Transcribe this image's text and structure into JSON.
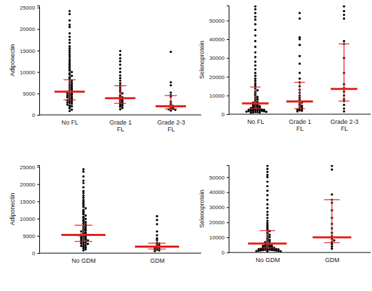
{
  "chart_data": [
    {
      "type": "strip",
      "y_label": "Adiponectin",
      "categories": [
        "No FL",
        "Grade 1\nFL",
        "Grade 2-3\nFL"
      ],
      "ylim": [
        0,
        25500
      ],
      "yticks": [
        0,
        5000,
        10000,
        15000,
        20000,
        25000
      ],
      "series": [
        {
          "type": "scatter",
          "color": "#000000",
          "marker": "circle",
          "values": [
            [
              24200,
              23500,
              22000,
              21000,
              20500,
              19000,
              18200,
              17500,
              16800,
              16000,
              15500,
              15000,
              14500,
              14000,
              13500,
              13000,
              12600,
              12200,
              11800,
              11400,
              11000,
              10600,
              10300,
              10000,
              9700,
              9400,
              9100,
              8800,
              8500,
              8200,
              8000,
              7700,
              7500,
              7200,
              7000,
              6800,
              6600,
              6400,
              6200,
              6000,
              5800,
              5600,
              5500,
              5400,
              5300,
              5100,
              5000,
              4800,
              4700,
              4500,
              4400,
              4200,
              4100,
              3900,
              3800,
              3600,
              3500,
              3400,
              3200,
              3100,
              2900,
              2800,
              2600,
              2400,
              2200,
              2000,
              1800,
              1500,
              1200,
              900
            ],
            [
              14900,
              14000,
              13200,
              12500,
              11700,
              10800,
              10000,
              9200,
              8600,
              8000,
              7400,
              6900,
              6500,
              6100,
              5700,
              5300,
              5000,
              4600,
              4300,
              4100,
              3900,
              3700,
              3500,
              3300,
              3100,
              2900,
              2700,
              2500,
              2300,
              2100,
              1900,
              1600,
              1300
            ],
            [
              14700,
              7600,
              6900,
              5200,
              4600,
              4200,
              3100,
              2600,
              2300,
              2100,
              2000,
              1900,
              1700,
              1500,
              1400,
              1300,
              1200,
              1000
            ]
          ]
        },
        {
          "type": "errorbar",
          "color": "#e3201b",
          "values": [
            5400,
            3900,
            2000
          ],
          "lower": [
            3500,
            2700,
            1400
          ],
          "upper": [
            8200,
            6800,
            4500
          ]
        }
      ]
    },
    {
      "type": "strip",
      "y_label": "Selenoprotein",
      "categories": [
        "No FL",
        "Grade 1\nFL",
        "Grade 2-3\nFL"
      ],
      "ylim": [
        0,
        58000
      ],
      "yticks": [
        0,
        10000,
        20000,
        30000,
        40000,
        50000
      ],
      "series": [
        {
          "type": "scatter",
          "color": "#000000",
          "marker": "circle",
          "values": [
            [
              57500,
              56000,
              54000,
              52000,
              50500,
              48000,
              45000,
              42000,
              39000,
              36000,
              33000,
              30500,
              28000,
              26000,
              24000,
              22000,
              20500,
              19000,
              17800,
              16500,
              15500,
              14500,
              13600,
              12800,
              12000,
              11200,
              10500,
              9800,
              9200,
              8600,
              8000,
              7500,
              7000,
              6600,
              6200,
              5900,
              5600,
              5300,
              5000,
              4700,
              4500,
              4300,
              4100,
              3900,
              3700,
              3500,
              3300,
              3100,
              3000,
              2800,
              2700,
              2600,
              2500,
              2400,
              2300,
              2200,
              2100,
              2000,
              1900,
              1800,
              1700,
              1600,
              1500,
              1400,
              1300,
              1200,
              1100,
              1000,
              900,
              800
            ],
            [
              54000,
              51000,
              41000,
              40000,
              37000,
              31000,
              27000,
              22000,
              19000,
              17000,
              15000,
              13000,
              11500,
              10000,
              9000,
              8000,
              7200,
              6800,
              6200,
              5600,
              5000,
              4500,
              4000,
              3500,
              3000,
              2700,
              2400,
              2100,
              1800,
              1500
            ],
            [
              57500,
              55000,
              53000,
              51000,
              39000,
              37500,
              30000,
              22000,
              16000,
              14000,
              13500,
              12000,
              10000,
              8000,
              7000,
              5000,
              3000,
              1500
            ]
          ]
        },
        {
          "type": "errorbar",
          "color": "#e3201b",
          "values": [
            5800,
            6800,
            13500
          ],
          "lower": [
            3000,
            3000,
            7000
          ],
          "upper": [
            14500,
            17000,
            37500
          ]
        }
      ]
    },
    {
      "type": "strip",
      "y_label": "Adiponectin",
      "categories": [
        "No GDM",
        "GDM"
      ],
      "ylim": [
        0,
        25500
      ],
      "yticks": [
        0,
        5000,
        10000,
        15000,
        20000,
        25000
      ],
      "series": [
        {
          "type": "scatter",
          "color": "#000000",
          "marker": "circle",
          "values": [
            [
              24300,
              23600,
              22200,
              21000,
              20300,
              19100,
              18000,
              17400,
              16700,
              16100,
              15400,
              14900,
              14400,
              13900,
              13400,
              13000,
              12500,
              12100,
              11700,
              11300,
              10900,
              10500,
              10200,
              9900,
              9600,
              9300,
              9000,
              8700,
              8400,
              8100,
              7900,
              7600,
              7400,
              7100,
              6900,
              6700,
              6500,
              6300,
              6100,
              5900,
              5700,
              5500,
              5400,
              5300,
              5200,
              5000,
              4900,
              4700,
              4600,
              4400,
              4300,
              4100,
              4000,
              3800,
              3700,
              3500,
              3400,
              3300,
              3100,
              3000,
              2800,
              2700,
              2500,
              2300,
              2100,
              1900,
              1700,
              1400,
              1100,
              800
            ],
            [
              10700,
              9600,
              8400,
              6300,
              5200,
              4300,
              3800,
              3000,
              2800,
              2500,
              2200,
              2000,
              1900,
              1700,
              1500,
              1300,
              1200,
              1000,
              800,
              600
            ]
          ]
        },
        {
          "type": "errorbar",
          "color": "#e3201b",
          "values": [
            5300,
            1900
          ],
          "lower": [
            3400,
            1200
          ],
          "upper": [
            8100,
            2900
          ]
        }
      ]
    },
    {
      "type": "strip",
      "y_label": "Selenoprotein",
      "categories": [
        "No GDM",
        "GDM"
      ],
      "ylim": [
        0,
        58000
      ],
      "yticks": [
        0,
        10000,
        20000,
        30000,
        40000,
        50000
      ],
      "series": [
        {
          "type": "scatter",
          "color": "#000000",
          "marker": "circle",
          "values": [
            [
              57500,
              55500,
              53500,
              51500,
              50000,
              47000,
              44000,
              41000,
              38000,
              35000,
              32000,
              29500,
              27000,
              25000,
              23000,
              21000,
              19500,
              18200,
              17000,
              16000,
              15000,
              14200,
              13400,
              12600,
              11800,
              11000,
              10300,
              9600,
              9000,
              8400,
              7900,
              7400,
              6900,
              6500,
              6100,
              5800,
              5500,
              5200,
              4900,
              4600,
              4400,
              4200,
              4000,
              3800,
              3600,
              3400,
              3200,
              3050,
              2900,
              2750,
              2650,
              2550,
              2450,
              2350,
              2250,
              2150,
              2050,
              1950,
              1850,
              1750,
              1650,
              1550,
              1450,
              1350,
              1250,
              1150,
              1050,
              950,
              850,
              750
            ],
            [
              57500,
              55000,
              38500,
              35000,
              33000,
              28000,
              23000,
              19000,
              16000,
              13000,
              11000,
              10000,
              9000,
              8000,
              7000,
              6500,
              5500,
              4000,
              2500
            ]
          ]
        },
        {
          "type": "errorbar",
          "color": "#e3201b",
          "values": [
            5900,
            10000
          ],
          "lower": [
            3000,
            6500
          ],
          "upper": [
            14500,
            35000
          ]
        }
      ]
    }
  ]
}
